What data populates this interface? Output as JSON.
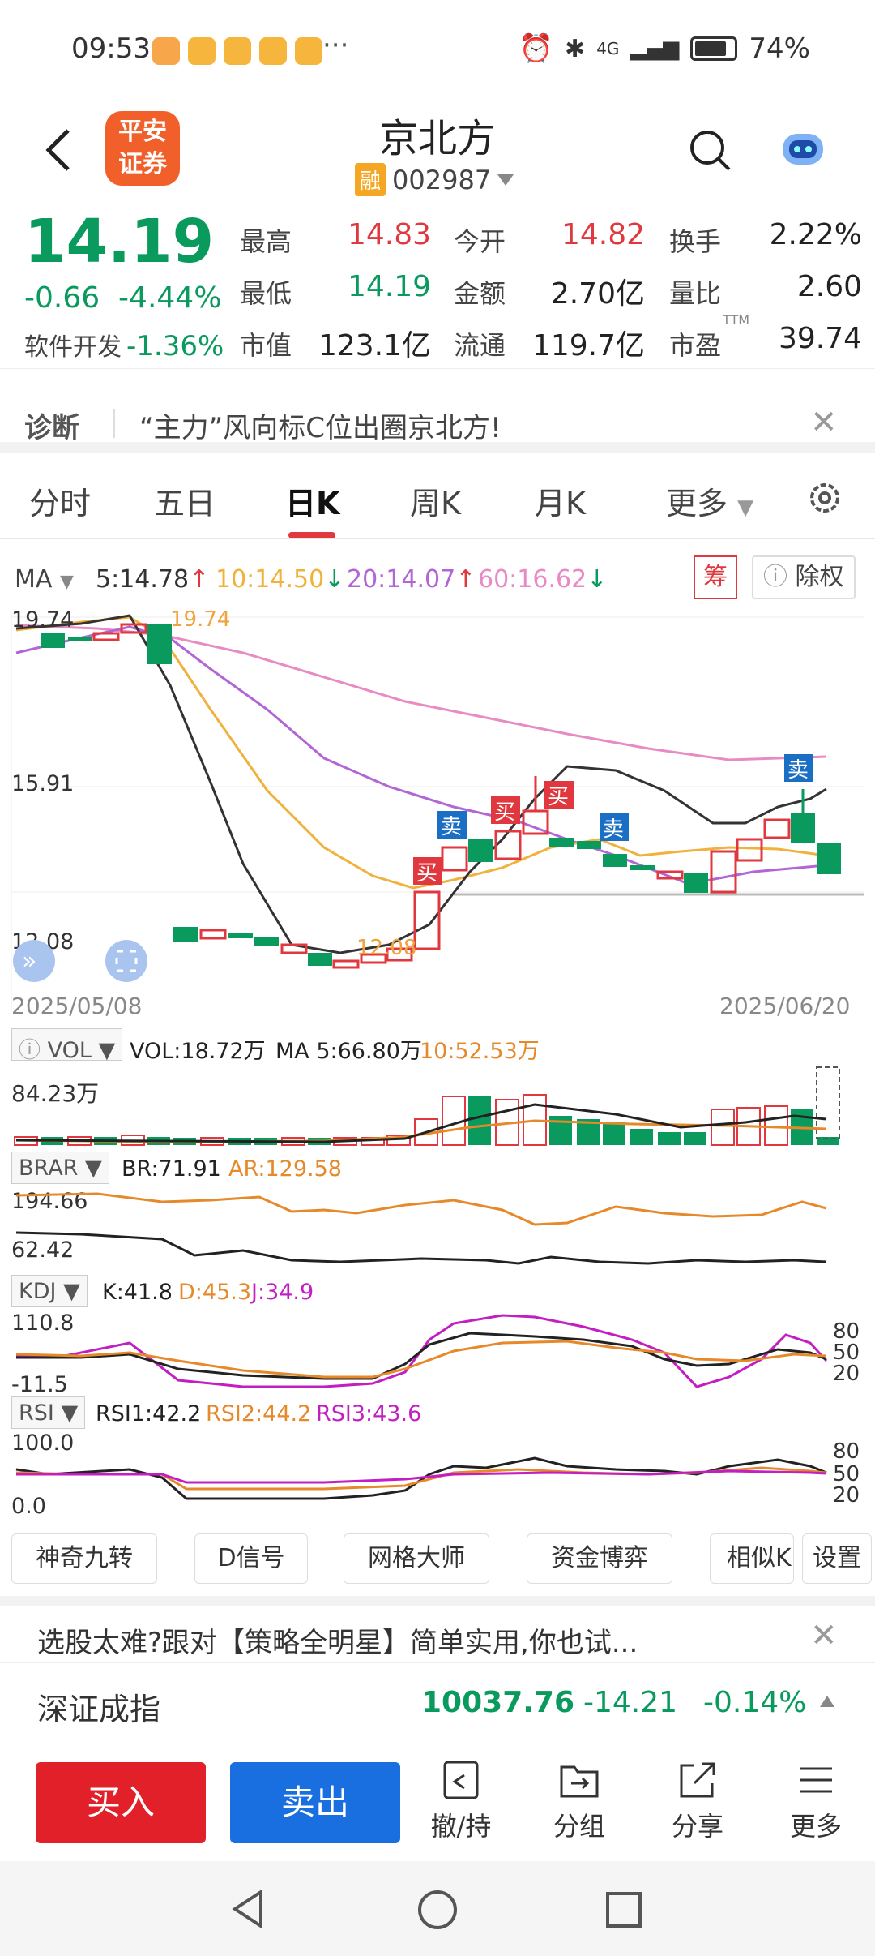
{
  "status_bar": {
    "time": "09:53",
    "dots": "···",
    "network": "4G",
    "battery": "74%"
  },
  "header": {
    "broker_logo": "平安\n证券",
    "broker_line1": "平安",
    "broker_line2": "证券",
    "stock_name": "京北方",
    "margin_badge": "融",
    "stock_code": "002987"
  },
  "quote": {
    "price": "14.19",
    "change": "-0.66",
    "change_pct": "-4.44%",
    "sector_name": "软件开发",
    "sector_pct": "-1.36%",
    "cells": [
      {
        "label": "最高",
        "value": "14.83"
      },
      {
        "label": "今开",
        "value": "14.82"
      },
      {
        "label": "换手",
        "value": "2.22%"
      },
      {
        "label": "最低",
        "value": "14.19"
      },
      {
        "label": "金额",
        "value": "2.70亿"
      },
      {
        "label": "量比",
        "value": "2.60"
      },
      {
        "label": "市值",
        "value": "123.1亿"
      },
      {
        "label": "流通",
        "value": "119.7亿"
      },
      {
        "label": "市盈",
        "value": "39.74"
      }
    ],
    "pe_sup": "TTM"
  },
  "diagnosis": {
    "label": "诊断",
    "text": "“主力”风向标C位出圈京北方!"
  },
  "tabs": [
    "分时",
    "五日",
    "日K",
    "周K",
    "月K",
    "更多"
  ],
  "active_tab": "日K",
  "ma_bar": {
    "label": "MA",
    "ma5": "5:14.78",
    "ma10": "10:14.50",
    "ma20": "20:14.07",
    "ma60": "60:16.62",
    "chips_btn": "筹",
    "exright_btn": "除权"
  },
  "kline": {
    "y_labels": [
      "19.74",
      "15.91",
      "12.08"
    ],
    "high_annot": "19.74",
    "low_annot": "12.08",
    "date_start": "2025/05/08",
    "date_end": "2025/06/20",
    "markers": {
      "buy": "买",
      "sell": "卖"
    },
    "colors": {
      "up": "#e0383e",
      "down": "#0a9a5e",
      "ma5": "#333333",
      "ma10": "#f0b23c",
      "ma20": "#b266d6",
      "ma60": "#e88bc4"
    }
  },
  "vol": {
    "name": "VOL",
    "vol": "VOL:18.72万",
    "ma5": "MA 5:66.80万",
    "ma10": "10:52.53万",
    "max_label": "84.23万"
  },
  "brar": {
    "name": "BRAR",
    "br": "BR:71.91",
    "ar": "AR:129.58",
    "hi": "194.66",
    "lo": "62.42"
  },
  "kdj": {
    "name": "KDJ",
    "k": "K:41.8",
    "d": "D:45.3",
    "j": "J:34.9",
    "hi": "110.8",
    "lo": "-11.5",
    "right": [
      "80",
      "50",
      "20"
    ]
  },
  "rsi": {
    "name": "RSI",
    "rsi1": "RSI1:42.2",
    "rsi2": "RSI2:44.2",
    "rsi3": "RSI3:43.6",
    "hi": "100.0",
    "lo": "0.0",
    "right": [
      "80",
      "50",
      "20"
    ]
  },
  "tools": [
    "神奇九转",
    "D信号",
    "网格大师",
    "资金博弈",
    "相似K",
    "设置"
  ],
  "promo": "选股太难?跟对【策略全明星】简单实用,你也试...",
  "index": {
    "name": "深证成指",
    "value": "10037.76",
    "change": "-14.21",
    "pct": "-0.14%"
  },
  "actions": {
    "buy": "买入",
    "sell": "卖出",
    "items": [
      "撤/持",
      "分组",
      "分享",
      "更多"
    ]
  }
}
